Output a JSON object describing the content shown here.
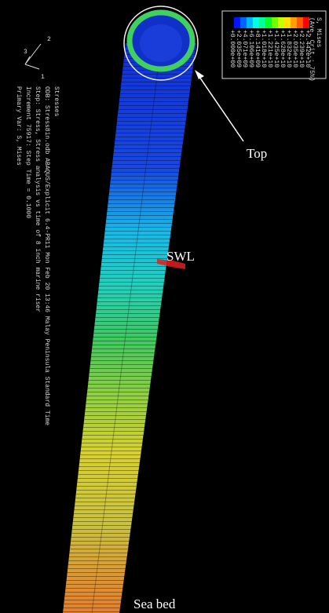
{
  "legend": {
    "title": "S, Mises",
    "subtitle": "(Ave. Crit.: 75%)",
    "values": [
      "+2.442e+10",
      "+2.239e+10",
      "+2.035e+10",
      "+1.832e+10",
      "+1.628e+10",
      "+1.425e+10",
      "+1.221e+10",
      "+1.018e+10",
      "+8.141e+09",
      "+6.106e+09",
      "+4.071e+09",
      "+2.035e+09",
      "+0.000e+00"
    ]
  },
  "info": {
    "lines": [
      "Stresses",
      "ODB: Stress8in.odb    ABAQUS/Explicit 6.4-PR11    Mon Feb 20    13:46 Malay Peninsula Standard Time",
      "Step: Stress, Stress analysis vs time of 8 inch marine riser",
      "Increment  75917: Step Time =    0.1000",
      "Primary Var: S, Mises"
    ]
  },
  "triad": {
    "labels": [
      "2",
      "3",
      "1"
    ]
  },
  "annotations": {
    "top": "Top",
    "swl": "SWL",
    "seabed": "Sea bed"
  }
}
